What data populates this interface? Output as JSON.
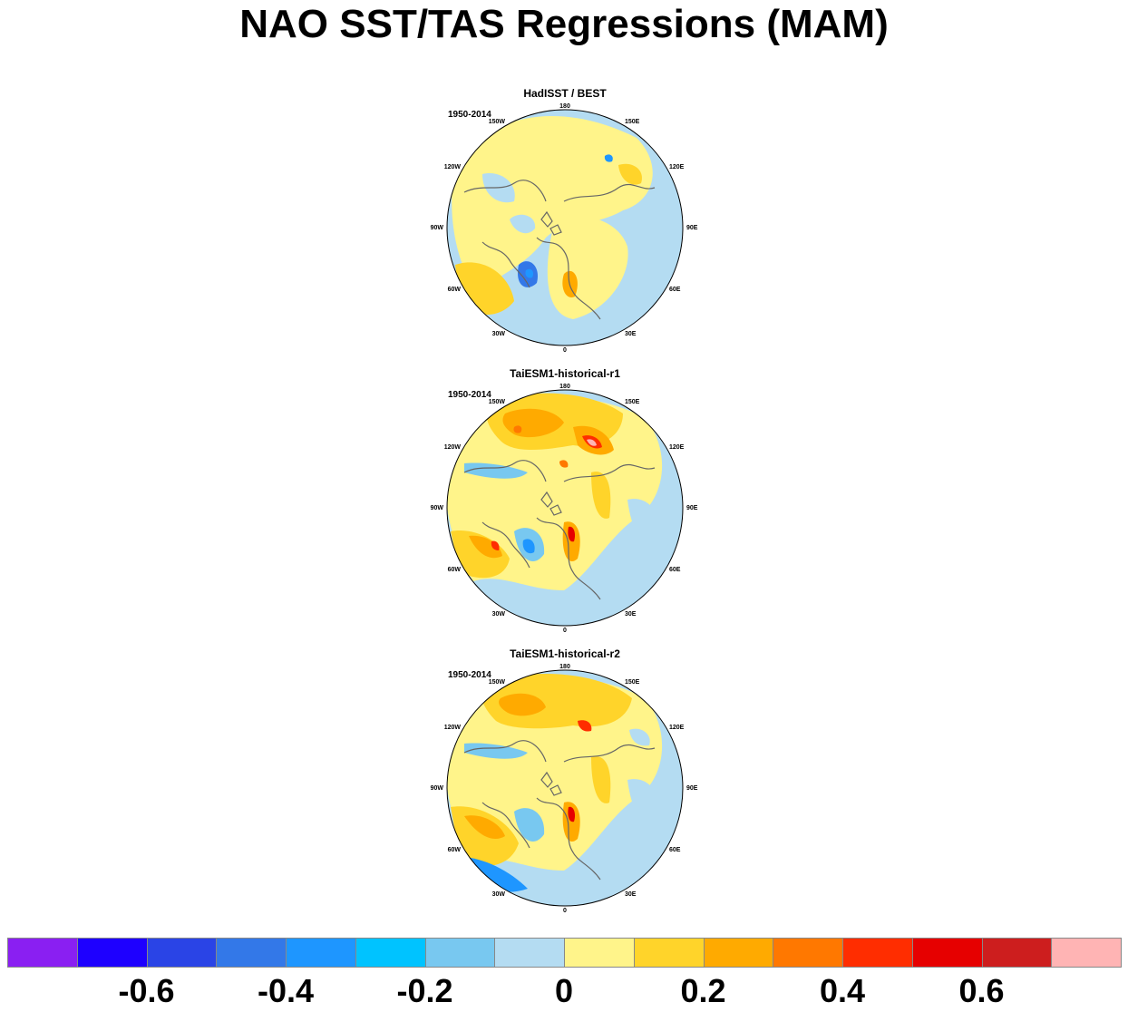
{
  "title": "NAO SST/TAS Regressions (MAM)",
  "panels": [
    {
      "title": "HadISST / BEST",
      "period": "1950-2014"
    },
    {
      "title": "TaiESM1-historical-r1",
      "period": "1950-2014"
    },
    {
      "title": "TaiESM1-historical-r2",
      "period": "1950-2014"
    }
  ],
  "longitude_labels": [
    "180",
    "150E",
    "120E",
    "90E",
    "60E",
    "30E",
    "0",
    "30W",
    "60W",
    "90W",
    "120W",
    "150W"
  ],
  "colorbar": {
    "colors": [
      "#8a1ff2",
      "#1e00ff",
      "#2a44e6",
      "#3378e8",
      "#1e96ff",
      "#00c3ff",
      "#78c8f0",
      "#b4dcf2",
      "#fff48a",
      "#ffd42a",
      "#ffaa00",
      "#ff7800",
      "#ff2d00",
      "#e60000",
      "#cd1e1e",
      "#ffb4b4"
    ],
    "tick_labels": [
      "-0.6",
      "-0.4",
      "-0.2",
      "0",
      "0.2",
      "0.4",
      "0.6"
    ]
  }
}
